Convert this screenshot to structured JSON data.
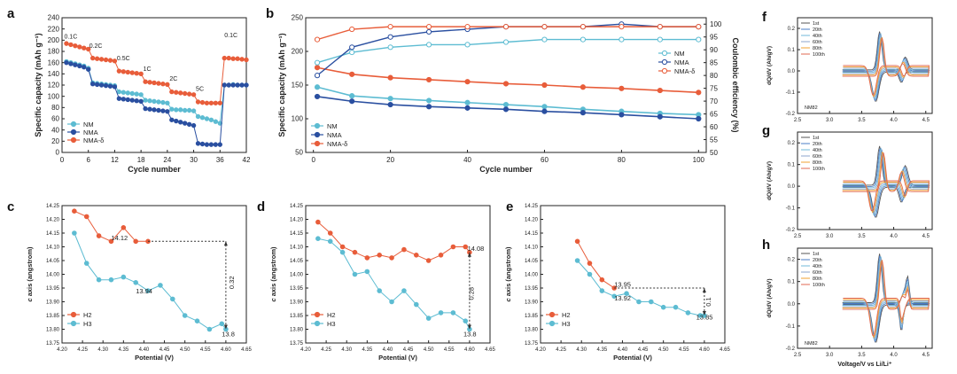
{
  "chart_data": [
    {
      "panel": "a",
      "type": "scatter-line",
      "xlabel": "Cycle number",
      "ylabel": "Specific capacity (mAh g⁻¹)",
      "xlim": [
        0,
        42
      ],
      "ylim": [
        0,
        240
      ],
      "xticks": [
        0,
        6,
        12,
        18,
        24,
        30,
        36,
        42
      ],
      "yticks": [
        0,
        20,
        40,
        60,
        80,
        100,
        120,
        140,
        160,
        180,
        200,
        220,
        240
      ],
      "series": [
        {
          "name": "NM",
          "color": "#5dbcd2",
          "x": [
            1,
            2,
            3,
            4,
            5,
            6,
            7,
            8,
            9,
            10,
            11,
            12,
            13,
            14,
            15,
            16,
            17,
            18,
            19,
            20,
            21,
            22,
            23,
            24,
            25,
            26,
            27,
            28,
            29,
            30,
            31,
            32,
            33,
            34,
            35,
            36,
            37,
            38,
            39,
            40,
            41,
            42
          ],
          "y": [
            162,
            160,
            158,
            156,
            154,
            150,
            124,
            123,
            122,
            121,
            120,
            119,
            108,
            107,
            106,
            105,
            104,
            103,
            93,
            92,
            91,
            90,
            89,
            88,
            77,
            76,
            76,
            75,
            75,
            74,
            64,
            62,
            60,
            58,
            55,
            52,
            120,
            120,
            121,
            120,
            120,
            120
          ]
        },
        {
          "name": "NMA",
          "color": "#2a4fa0",
          "x": [
            1,
            2,
            3,
            4,
            5,
            6,
            7,
            8,
            9,
            10,
            11,
            12,
            13,
            14,
            15,
            16,
            17,
            18,
            19,
            20,
            21,
            22,
            23,
            24,
            25,
            26,
            27,
            28,
            29,
            30,
            31,
            32,
            33,
            34,
            35,
            36,
            37,
            38,
            39,
            40,
            41,
            42
          ],
          "y": [
            160,
            158,
            156,
            154,
            152,
            148,
            122,
            121,
            120,
            119,
            118,
            117,
            96,
            95,
            94,
            93,
            92,
            91,
            78,
            77,
            76,
            75,
            74,
            73,
            58,
            56,
            54,
            52,
            50,
            48,
            16,
            15,
            14,
            14,
            14,
            14,
            120,
            120,
            120,
            120,
            120,
            120
          ]
        },
        {
          "name": "NMA-δ",
          "color": "#e85d3a",
          "x": [
            1,
            2,
            3,
            4,
            5,
            6,
            7,
            8,
            9,
            10,
            11,
            12,
            13,
            14,
            15,
            16,
            17,
            18,
            19,
            20,
            21,
            22,
            23,
            24,
            25,
            26,
            27,
            28,
            29,
            30,
            31,
            32,
            33,
            34,
            35,
            36,
            37,
            38,
            39,
            40,
            41,
            42
          ],
          "y": [
            194,
            192,
            190,
            188,
            186,
            184,
            168,
            167,
            166,
            165,
            164,
            163,
            145,
            144,
            143,
            142,
            141,
            140,
            126,
            125,
            124,
            123,
            122,
            121,
            108,
            107,
            106,
            105,
            104,
            103,
            90,
            89,
            88,
            88,
            88,
            88,
            168,
            168,
            167,
            167,
            166,
            165
          ]
        }
      ],
      "annotations": [
        "0.1C",
        "0.2C",
        "0.5C",
        "1C",
        "2C",
        "5C",
        "0.1C"
      ]
    },
    {
      "panel": "b",
      "type": "scatter-line",
      "xlabel": "Cycle number",
      "ylabel": "Specific capacity (mAh g⁻¹)",
      "y2label": "Coulombic efficiency (%)",
      "xlim": [
        -2,
        102
      ],
      "ylim": [
        50,
        250
      ],
      "y2lim": [
        50,
        102.5
      ],
      "xticks": [
        0,
        20,
        40,
        60,
        80,
        100
      ],
      "yticks": [
        50,
        100,
        150,
        200,
        250
      ],
      "y2ticks": [
        50,
        55,
        60,
        65,
        70,
        75,
        80,
        85,
        90,
        95,
        100
      ],
      "series": [
        {
          "name": "NM",
          "axis": "left",
          "color": "#5dbcd2",
          "x": [
            1,
            10,
            20,
            30,
            40,
            50,
            60,
            70,
            80,
            90,
            100
          ],
          "y": [
            147,
            134,
            130,
            127,
            124,
            121,
            118,
            114,
            111,
            108,
            106
          ]
        },
        {
          "name": "NMA",
          "axis": "left",
          "color": "#2a4fa0",
          "x": [
            1,
            10,
            20,
            30,
            40,
            50,
            60,
            70,
            80,
            90,
            100
          ],
          "y": [
            133,
            126,
            121,
            118,
            116,
            114,
            111,
            109,
            106,
            103,
            100
          ]
        },
        {
          "name": "NMA-δ",
          "axis": "left",
          "color": "#e85d3a",
          "x": [
            1,
            10,
            20,
            30,
            40,
            50,
            60,
            70,
            80,
            90,
            100
          ],
          "y": [
            176,
            166,
            161,
            158,
            155,
            152,
            150,
            147,
            145,
            142,
            139
          ]
        },
        {
          "name": "NM",
          "axis": "right",
          "color": "#5dbcd2",
          "x": [
            1,
            10,
            20,
            30,
            40,
            50,
            60,
            70,
            80,
            90,
            100
          ],
          "y": [
            85,
            89,
            91,
            92,
            92,
            93,
            94,
            94,
            94,
            94,
            94
          ]
        },
        {
          "name": "NMA",
          "axis": "right",
          "color": "#2a4fa0",
          "x": [
            1,
            10,
            20,
            30,
            40,
            50,
            60,
            70,
            80,
            90,
            100
          ],
          "y": [
            80,
            91,
            95,
            97,
            98,
            99,
            99,
            99,
            100,
            99,
            99
          ]
        },
        {
          "name": "NMA-δ",
          "axis": "right",
          "color": "#e85d3a",
          "x": [
            1,
            10,
            20,
            30,
            40,
            50,
            60,
            70,
            80,
            90,
            100
          ],
          "y": [
            94,
            98,
            99,
            99,
            99,
            99,
            99,
            99,
            99,
            99,
            99
          ]
        }
      ]
    },
    {
      "panel": "c",
      "type": "line",
      "xlabel": "Potential (V)",
      "ylabel": "c axis (angstrom)",
      "xlim": [
        4.2,
        4.65
      ],
      "ylim": [
        13.75,
        14.25
      ],
      "xticks": [
        4.2,
        4.25,
        4.3,
        4.35,
        4.4,
        4.45,
        4.5,
        4.55,
        4.6,
        4.65
      ],
      "yticks": [
        13.75,
        13.8,
        13.85,
        13.9,
        13.95,
        14.0,
        14.05,
        14.1,
        14.15,
        14.2,
        14.25
      ],
      "series": [
        {
          "name": "H2",
          "color": "#e85d3a",
          "x": [
            4.23,
            4.26,
            4.29,
            4.32,
            4.35,
            4.38,
            4.41
          ],
          "y": [
            14.23,
            14.21,
            14.14,
            14.12,
            14.17,
            14.12,
            14.12
          ]
        },
        {
          "name": "H3",
          "color": "#5dbcd2",
          "x": [
            4.23,
            4.26,
            4.29,
            4.32,
            4.35,
            4.38,
            4.41,
            4.44,
            4.47,
            4.5,
            4.53,
            4.56,
            4.59,
            4.6
          ],
          "y": [
            14.15,
            14.04,
            13.98,
            13.98,
            13.99,
            13.97,
            13.94,
            13.96,
            13.91,
            13.85,
            13.83,
            13.8,
            13.82,
            13.8
          ]
        }
      ],
      "labels": {
        "top": "14.12",
        "mid": "13.94",
        "bottom": "13.8",
        "diff": "0.32"
      }
    },
    {
      "panel": "d",
      "type": "line",
      "xlabel": "Potential (V)",
      "ylabel": "c axis (angstrom)",
      "xlim": [
        4.2,
        4.65
      ],
      "ylim": [
        13.75,
        14.25
      ],
      "xticks": [
        4.2,
        4.25,
        4.3,
        4.35,
        4.4,
        4.45,
        4.5,
        4.55,
        4.6,
        4.65
      ],
      "yticks": [
        13.75,
        13.8,
        13.85,
        13.9,
        13.95,
        14.0,
        14.05,
        14.1,
        14.15,
        14.2,
        14.25
      ],
      "series": [
        {
          "name": "H2",
          "color": "#e85d3a",
          "x": [
            4.23,
            4.26,
            4.29,
            4.32,
            4.35,
            4.38,
            4.41,
            4.44,
            4.47,
            4.5,
            4.53,
            4.56,
            4.59,
            4.6
          ],
          "y": [
            14.19,
            14.15,
            14.1,
            14.08,
            14.06,
            14.07,
            14.06,
            14.09,
            14.07,
            14.05,
            14.07,
            14.1,
            14.1,
            14.08
          ]
        },
        {
          "name": "H3",
          "color": "#5dbcd2",
          "x": [
            4.23,
            4.26,
            4.29,
            4.32,
            4.35,
            4.38,
            4.41,
            4.44,
            4.47,
            4.5,
            4.53,
            4.56,
            4.59,
            4.6
          ],
          "y": [
            14.13,
            14.12,
            14.08,
            14.0,
            14.01,
            13.94,
            13.9,
            13.94,
            13.89,
            13.84,
            13.86,
            13.86,
            13.83,
            13.8
          ]
        }
      ],
      "labels": {
        "top": "14.08",
        "bottom": "13.8",
        "diff": "0.28"
      }
    },
    {
      "panel": "e",
      "type": "line",
      "xlabel": "Potential (V)",
      "ylabel": "c axis (angstrom)",
      "xlim": [
        4.2,
        4.65
      ],
      "ylim": [
        13.75,
        14.25
      ],
      "xticks": [
        4.2,
        4.25,
        4.3,
        4.35,
        4.4,
        4.45,
        4.5,
        4.55,
        4.6,
        4.65
      ],
      "yticks": [
        13.75,
        13.8,
        13.85,
        13.9,
        13.95,
        14.0,
        14.05,
        14.1,
        14.15,
        14.2,
        14.25
      ],
      "series": [
        {
          "name": "H2",
          "color": "#e85d3a",
          "x": [
            4.29,
            4.32,
            4.35,
            4.38
          ],
          "y": [
            14.12,
            14.04,
            13.98,
            13.95
          ]
        },
        {
          "name": "H3",
          "color": "#5dbcd2",
          "x": [
            4.29,
            4.32,
            4.35,
            4.38,
            4.41,
            4.44,
            4.47,
            4.5,
            4.53,
            4.56,
            4.59,
            4.6
          ],
          "y": [
            14.05,
            14.0,
            13.94,
            13.92,
            13.93,
            13.9,
            13.9,
            13.88,
            13.88,
            13.86,
            13.85,
            13.85
          ]
        }
      ],
      "labels": {
        "top": "13.95",
        "mid": "13.92",
        "bottom": "13.85",
        "diff": "0.1"
      }
    },
    {
      "panel": "f",
      "type": "line",
      "xlabel": "",
      "ylabel": "dQ/dV (Ah/gV)",
      "xlim": [
        2.5,
        4.6
      ],
      "ylim": [
        -0.2,
        0.25
      ],
      "xticks": [
        2.5,
        3.0,
        3.5,
        4.0,
        4.5
      ],
      "yticks": [
        -0.2,
        -0.1,
        0.0,
        0.1,
        0.2
      ],
      "legend": [
        "1st",
        "20th",
        "40th",
        "60th",
        "80th",
        "100th"
      ],
      "sample": "NM82"
    },
    {
      "panel": "g",
      "type": "line",
      "xlabel": "",
      "ylabel": "dQ/dV (Ah/gV)",
      "xlim": [
        2.5,
        4.6
      ],
      "ylim": [
        -0.2,
        0.25
      ],
      "xticks": [
        2.5,
        3.0,
        3.5,
        4.0,
        4.5
      ],
      "yticks": [
        -0.2,
        -0.1,
        0.0,
        0.1,
        0.2
      ],
      "legend": [
        "1st",
        "20th",
        "40th",
        "60th",
        "80th",
        "100th"
      ]
    },
    {
      "panel": "h",
      "type": "line",
      "xlabel": "Voltage/V vs Li/Li⁺",
      "ylabel": "dQ/dV (Ah/gV)",
      "xlim": [
        2.5,
        4.6
      ],
      "ylim": [
        -0.2,
        0.25
      ],
      "xticks": [
        2.5,
        3.0,
        3.5,
        4.0,
        4.5
      ],
      "yticks": [
        -0.2,
        -0.1,
        0.0,
        0.1,
        0.2
      ],
      "legend": [
        "1st",
        "20th",
        "40th",
        "60th",
        "80th",
        "100th"
      ],
      "sample": "NM82"
    }
  ],
  "cv_colors": [
    "#555555",
    "#4a7cc7",
    "#70b8d8",
    "#8da6cc",
    "#f0a030",
    "#e06850"
  ]
}
